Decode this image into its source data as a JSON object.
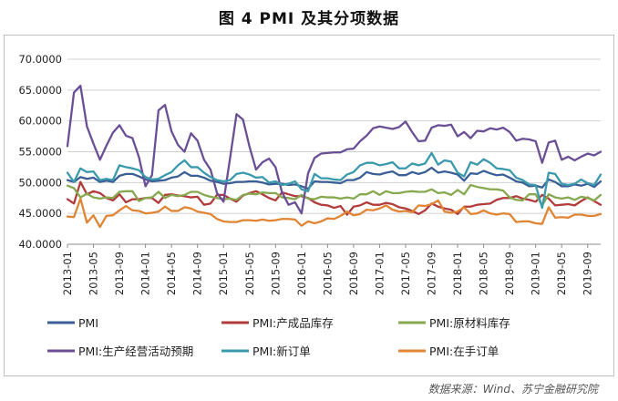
{
  "title": "图 4 PMI 及其分项数据",
  "source": "数据来源：Wind、苏宁金融研究院",
  "chart_data": {
    "type": "line",
    "title": "图 4 PMI 及其分项数据",
    "xlabel": "",
    "ylabel": "",
    "ylim": [
      40,
      70
    ],
    "yticks": [
      "40.0000",
      "45.0000",
      "50.0000",
      "55.0000",
      "60.0000",
      "65.0000",
      "70.0000"
    ],
    "xticks": [
      "2013-01",
      "2013-05",
      "2013-09",
      "2014-01",
      "2014-05",
      "2014-09",
      "2015-01",
      "2015-05",
      "2015-09",
      "2016-01",
      "2016-05",
      "2016-09",
      "2017-01",
      "2017-05",
      "2017-09",
      "2018-01",
      "2018-05",
      "2018-09",
      "2019-01",
      "2019-05",
      "2019-09"
    ],
    "start_month": "2013-01",
    "grid": "horizontal",
    "legend_position": "bottom",
    "series": [
      {
        "name": "PMI",
        "color": "#3a5f96",
        "values": [
          50.4,
          50.1,
          50.9,
          50.6,
          50.8,
          50.1,
          50.3,
          50.1,
          51.1,
          51.4,
          51.4,
          51.0,
          50.5,
          50.2,
          50.3,
          50.4,
          50.8,
          51.0,
          51.7,
          51.1,
          51.1,
          50.8,
          50.3,
          50.1,
          49.8,
          49.9,
          50.1,
          50.1,
          50.2,
          50.2,
          50.0,
          49.7,
          49.8,
          49.8,
          49.6,
          49.7,
          49.4,
          49.0,
          50.2,
          50.1,
          50.1,
          50.0,
          49.9,
          50.4,
          50.4,
          50.8,
          51.7,
          51.4,
          51.3,
          51.6,
          51.8,
          51.2,
          51.2,
          51.7,
          51.4,
          51.7,
          52.4,
          51.6,
          51.8,
          51.6,
          51.3,
          50.3,
          51.5,
          51.4,
          51.9,
          51.5,
          51.2,
          51.3,
          50.8,
          50.2,
          50.0,
          49.4,
          49.5,
          49.2,
          50.5,
          50.1,
          49.4,
          49.4,
          49.7,
          49.5,
          49.8,
          49.3,
          50.2
        ]
      },
      {
        "name": "PMI:产成品库存",
        "color": "#b23b3b",
        "values": [
          47.3,
          46.6,
          50.1,
          48.1,
          48.6,
          48.3,
          47.5,
          47.1,
          48.1,
          46.8,
          47.3,
          47.3,
          47.5,
          47.5,
          46.7,
          48.0,
          48.1,
          47.9,
          47.8,
          47.6,
          47.7,
          46.4,
          46.6,
          48.0,
          48.0,
          47.4,
          46.9,
          47.9,
          48.3,
          48.6,
          48.1,
          47.5,
          47.1,
          48.4,
          48.1,
          47.8,
          47.8,
          47.5,
          46.8,
          46.4,
          46.3,
          45.9,
          46.2,
          44.8,
          46.1,
          46.3,
          46.8,
          46.4,
          46.4,
          46.7,
          46.5,
          46.0,
          45.8,
          45.4,
          44.9,
          45.5,
          46.6,
          46.1,
          45.8,
          45.6,
          44.9,
          46.1,
          46.1,
          46.4,
          46.5,
          46.6,
          47.2,
          47.5,
          47.5,
          47.8,
          47.4,
          47.2,
          46.9,
          48.0,
          47.4,
          46.3,
          46.4,
          46.5,
          46.3,
          47.0,
          47.6,
          47.0,
          46.4
        ]
      },
      {
        "name": "PMI:原材料库存",
        "color": "#86a84e",
        "values": [
          49.5,
          49.1,
          47.6,
          48.2,
          47.6,
          47.4,
          47.6,
          47.5,
          48.5,
          48.6,
          48.6,
          47.0,
          47.5,
          47.6,
          48.5,
          47.5,
          48.0,
          47.8,
          48.0,
          48.5,
          48.5,
          48.0,
          47.7,
          47.5,
          47.3,
          47.4,
          47.2,
          48.0,
          48.2,
          48.1,
          48.4,
          48.3,
          48.3,
          47.6,
          47.5,
          47.3,
          48.0,
          47.4,
          47.3,
          47.7,
          47.6,
          47.6,
          47.4,
          47.6,
          47.4,
          48.1,
          48.1,
          48.6,
          48.0,
          48.6,
          48.3,
          48.3,
          48.5,
          48.6,
          48.5,
          48.5,
          48.9,
          48.3,
          48.4,
          48.0,
          48.8,
          48.1,
          49.6,
          49.3,
          49.1,
          48.9,
          48.9,
          48.7,
          47.6,
          47.2,
          47.1,
          48.1,
          48.1,
          46.3,
          48.1,
          47.6,
          47.4,
          47.6,
          47.2,
          47.7,
          47.5,
          47.1,
          48.0
        ]
      },
      {
        "name": "PMI:生产经营活动预期",
        "color": "#6a4f96",
        "values": [
          55.9,
          64.6,
          65.7,
          59.1,
          56.3,
          53.7,
          56.0,
          58.1,
          59.3,
          57.6,
          57.2,
          54.1,
          49.4,
          51.2,
          61.7,
          62.6,
          58.3,
          56.1,
          55.0,
          58.0,
          56.8,
          53.7,
          52.1,
          48.3,
          46.9,
          53.9,
          61.1,
          60.2,
          55.8,
          52.1,
          53.3,
          53.9,
          52.5,
          48.4,
          46.4,
          46.8,
          45.0,
          51.5,
          54.0,
          54.7,
          54.8,
          54.9,
          54.9,
          55.4,
          55.5,
          56.7,
          57.6,
          58.8,
          59.1,
          58.9,
          58.7,
          59.0,
          59.9,
          58.2,
          56.7,
          56.8,
          58.9,
          59.3,
          59.2,
          59.4,
          57.5,
          58.2,
          57.2,
          58.4,
          58.3,
          58.8,
          58.6,
          58.9,
          58.2,
          56.8,
          57.1,
          57.0,
          56.7,
          53.2,
          56.5,
          56.8,
          53.7,
          54.2,
          53.6,
          54.2,
          54.7,
          54.4,
          55.0
        ]
      },
      {
        "name": "PMI:新订单",
        "color": "#3a9aad",
        "values": [
          51.6,
          50.1,
          52.3,
          51.7,
          51.8,
          50.4,
          50.6,
          50.4,
          52.8,
          52.5,
          52.3,
          52.0,
          50.9,
          50.5,
          50.6,
          51.2,
          51.7,
          52.8,
          53.6,
          52.5,
          52.5,
          51.6,
          50.9,
          50.4,
          50.2,
          50.4,
          51.4,
          51.6,
          51.3,
          50.8,
          50.9,
          50.0,
          50.2,
          49.6,
          49.8,
          50.2,
          48.9,
          48.6,
          51.4,
          50.7,
          50.7,
          50.5,
          50.4,
          51.3,
          51.7,
          52.8,
          53.2,
          53.2,
          52.8,
          53.0,
          53.3,
          52.3,
          52.3,
          53.1,
          52.8,
          53.1,
          54.8,
          52.9,
          53.6,
          53.4,
          51.6,
          51.0,
          53.3,
          52.9,
          53.8,
          53.2,
          52.3,
          52.2,
          52.0,
          50.8,
          50.4,
          49.7,
          49.6,
          45.9,
          51.6,
          51.4,
          49.8,
          49.6,
          49.8,
          50.5,
          49.9,
          49.6,
          51.3
        ]
      },
      {
        "name": "PMI:在手订单",
        "color": "#e08534",
        "values": [
          44.5,
          44.4,
          47.4,
          43.5,
          44.7,
          42.8,
          44.6,
          44.7,
          45.5,
          46.2,
          45.5,
          45.4,
          45.0,
          45.1,
          45.3,
          46.1,
          45.4,
          45.4,
          46.0,
          45.8,
          45.3,
          45.1,
          44.9,
          44.1,
          43.7,
          43.6,
          43.6,
          43.9,
          43.9,
          43.8,
          44.0,
          43.8,
          43.9,
          44.1,
          44.1,
          44.0,
          43.0,
          43.7,
          43.4,
          43.7,
          44.2,
          44.1,
          44.6,
          45.3,
          44.7,
          44.9,
          45.6,
          45.5,
          45.8,
          46.3,
          45.6,
          45.3,
          45.4,
          45.2,
          46.3,
          46.2,
          46.5,
          47.1,
          45.3,
          45.1,
          45.3,
          46.0,
          44.9,
          45.0,
          45.5,
          45.0,
          44.8,
          45.0,
          44.9,
          43.6,
          43.7,
          43.7,
          43.4,
          43.3,
          46.0,
          44.3,
          44.4,
          44.3,
          44.8,
          44.8,
          44.6,
          44.6,
          44.9
        ]
      }
    ]
  }
}
